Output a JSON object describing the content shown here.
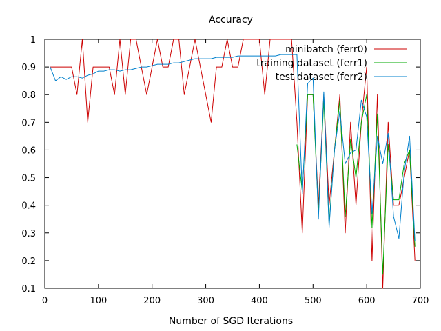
{
  "chart_data": {
    "type": "line",
    "title": "Accuracy",
    "xlabel": "Number of SGD Iterations",
    "ylabel": "",
    "xlim": [
      0,
      700
    ],
    "ylim": [
      0.1,
      1.0
    ],
    "xticks": [
      "0",
      "100",
      "200",
      "300",
      "400",
      "500",
      "600",
      "700"
    ],
    "yticks": [
      "0.1",
      "0.2",
      "0.3",
      "0.4",
      "0.5",
      "0.6",
      "0.7",
      "0.8",
      "0.9",
      "1"
    ],
    "grid": false,
    "legend_position": "top-right",
    "series": [
      {
        "name": "minibatch (ferr0)",
        "color": "#cc0000",
        "x": [
          10,
          20,
          30,
          40,
          50,
          60,
          70,
          80,
          90,
          100,
          110,
          120,
          130,
          140,
          150,
          160,
          170,
          180,
          190,
          200,
          210,
          220,
          230,
          240,
          250,
          260,
          270,
          280,
          290,
          300,
          310,
          320,
          330,
          340,
          350,
          360,
          370,
          380,
          390,
          400,
          410,
          420,
          430,
          440,
          450,
          460,
          470,
          480,
          490,
          500,
          510,
          520,
          530,
          540,
          550,
          560,
          570,
          580,
          590,
          600,
          610,
          620,
          630,
          640,
          650,
          660,
          670,
          680,
          690
        ],
        "y": [
          0.9,
          0.9,
          0.9,
          0.9,
          0.9,
          0.8,
          1.0,
          0.7,
          0.9,
          0.9,
          0.9,
          0.9,
          0.8,
          1.0,
          0.8,
          1.0,
          1.0,
          0.9,
          0.8,
          0.9,
          1.0,
          0.9,
          0.9,
          1.0,
          1.0,
          0.8,
          0.9,
          1.0,
          0.9,
          0.8,
          0.7,
          0.9,
          0.9,
          1.0,
          0.9,
          0.9,
          1.0,
          1.0,
          1.0,
          1.0,
          0.8,
          1.0,
          1.0,
          1.0,
          1.0,
          1.0,
          0.7,
          0.3,
          0.8,
          0.8,
          0.4,
          0.8,
          0.4,
          0.6,
          0.8,
          0.3,
          0.7,
          0.4,
          0.7,
          0.9,
          0.2,
          0.8,
          0.1,
          0.7,
          0.4,
          0.4,
          0.5,
          0.6,
          0.2
        ]
      },
      {
        "name": "training dataset (ferr1)",
        "color": "#00aa00",
        "x": [
          470,
          480,
          490,
          500,
          510,
          520,
          530,
          540,
          550,
          560,
          570,
          580,
          590,
          600,
          610,
          620,
          630,
          640,
          650,
          660,
          670,
          680,
          690
        ],
        "y": [
          0.62,
          0.45,
          0.8,
          0.8,
          0.37,
          0.78,
          0.33,
          0.6,
          0.78,
          0.36,
          0.64,
          0.5,
          0.7,
          0.8,
          0.32,
          0.73,
          0.15,
          0.62,
          0.42,
          0.42,
          0.55,
          0.6,
          0.25
        ]
      },
      {
        "name": "test dataset (ferr2)",
        "color": "#0080cc",
        "x": [
          10,
          20,
          30,
          40,
          50,
          60,
          70,
          80,
          90,
          100,
          110,
          120,
          130,
          140,
          150,
          160,
          170,
          180,
          190,
          200,
          210,
          220,
          230,
          240,
          250,
          260,
          270,
          280,
          290,
          300,
          310,
          320,
          330,
          340,
          350,
          360,
          370,
          380,
          390,
          400,
          410,
          420,
          430,
          440,
          450,
          460,
          470,
          480,
          490,
          500,
          510,
          520,
          530,
          540,
          550,
          560,
          570,
          580,
          590,
          600,
          610,
          620,
          630,
          640,
          650,
          660,
          670,
          680,
          690
        ],
        "y": [
          0.9,
          0.85,
          0.865,
          0.855,
          0.865,
          0.865,
          0.86,
          0.87,
          0.875,
          0.885,
          0.885,
          0.89,
          0.89,
          0.885,
          0.89,
          0.89,
          0.895,
          0.9,
          0.9,
          0.905,
          0.91,
          0.91,
          0.91,
          0.915,
          0.915,
          0.92,
          0.925,
          0.93,
          0.93,
          0.93,
          0.93,
          0.935,
          0.935,
          0.935,
          0.935,
          0.94,
          0.94,
          0.94,
          0.94,
          0.94,
          0.94,
          0.94,
          0.94,
          0.945,
          0.945,
          0.945,
          0.945,
          0.44,
          0.84,
          0.86,
          0.35,
          0.81,
          0.32,
          0.6,
          0.74,
          0.55,
          0.59,
          0.6,
          0.78,
          0.72,
          0.37,
          0.65,
          0.55,
          0.66,
          0.36,
          0.28,
          0.52,
          0.65,
          0.27
        ]
      }
    ]
  }
}
